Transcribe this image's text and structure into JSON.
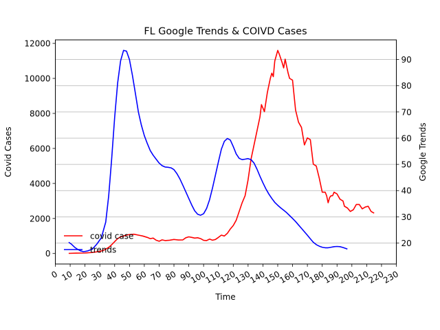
{
  "chart_data": {
    "type": "line",
    "title": "FL Google Trends & COIVD Cases",
    "xlabel": "Time",
    "ylabel_left": "Covid Cases",
    "ylabel_right": "Google Trends",
    "xlim": [
      0,
      230
    ],
    "ylim_left": [
      -600,
      12200
    ],
    "ylim_right": [
      12,
      97.5
    ],
    "xticks": [
      0,
      10,
      20,
      30,
      40,
      50,
      60,
      70,
      80,
      90,
      100,
      110,
      120,
      130,
      140,
      150,
      160,
      170,
      180,
      190,
      200,
      210,
      220,
      230
    ],
    "yticks_left": [
      0,
      2000,
      4000,
      6000,
      8000,
      10000,
      12000
    ],
    "yticks_right": [
      20,
      30,
      40,
      50,
      60,
      70,
      80,
      90
    ],
    "grid": "horizontal lines on right axis",
    "legend_position": "lower-left",
    "colors": {
      "covid": "#ff0000",
      "trends": "#0000ff"
    },
    "series": [
      {
        "name": "covid case",
        "axis": "left",
        "points": [
          [
            9,
            10
          ],
          [
            14,
            20
          ],
          [
            20,
            30
          ],
          [
            25,
            60
          ],
          [
            30,
            120
          ],
          [
            33,
            200
          ],
          [
            36,
            350
          ],
          [
            38,
            500
          ],
          [
            40,
            680
          ],
          [
            42,
            850
          ],
          [
            44,
            950
          ],
          [
            46,
            1000
          ],
          [
            48,
            1050
          ],
          [
            50,
            1080
          ],
          [
            53,
            1100
          ],
          [
            56,
            1050
          ],
          [
            59,
            1000
          ],
          [
            62,
            920
          ],
          [
            64,
            850
          ],
          [
            66,
            880
          ],
          [
            68,
            760
          ],
          [
            70,
            700
          ],
          [
            72,
            780
          ],
          [
            74,
            740
          ],
          [
            77,
            760
          ],
          [
            80,
            800
          ],
          [
            83,
            770
          ],
          [
            86,
            780
          ],
          [
            88,
            900
          ],
          [
            90,
            950
          ],
          [
            92,
            920
          ],
          [
            94,
            880
          ],
          [
            96,
            900
          ],
          [
            98,
            850
          ],
          [
            100,
            750
          ],
          [
            102,
            740
          ],
          [
            104,
            820
          ],
          [
            106,
            760
          ],
          [
            108,
            800
          ],
          [
            110,
            920
          ],
          [
            112,
            1050
          ],
          [
            114,
            1000
          ],
          [
            116,
            1150
          ],
          [
            118,
            1400
          ],
          [
            120,
            1600
          ],
          [
            122,
            1900
          ],
          [
            124,
            2400
          ],
          [
            126,
            2900
          ],
          [
            128,
            3300
          ],
          [
            130,
            4200
          ],
          [
            132,
            5400
          ],
          [
            134,
            6200
          ],
          [
            136,
            7000
          ],
          [
            138,
            7800
          ],
          [
            139,
            8500
          ],
          [
            141,
            8100
          ],
          [
            143,
            9200
          ],
          [
            145,
            10000
          ],
          [
            146,
            10300
          ],
          [
            147,
            10100
          ],
          [
            148,
            11000
          ],
          [
            150,
            11600
          ],
          [
            151,
            11400
          ],
          [
            153,
            10900
          ],
          [
            154,
            10600
          ],
          [
            155,
            11100
          ],
          [
            156,
            10700
          ],
          [
            157,
            10300
          ],
          [
            158,
            10000
          ],
          [
            160,
            9900
          ],
          [
            162,
            8200
          ],
          [
            164,
            7500
          ],
          [
            166,
            7200
          ],
          [
            168,
            6200
          ],
          [
            170,
            6600
          ],
          [
            172,
            6500
          ],
          [
            174,
            5100
          ],
          [
            176,
            5000
          ],
          [
            178,
            4300
          ],
          [
            180,
            3500
          ],
          [
            182,
            3500
          ],
          [
            183,
            3300
          ],
          [
            184,
            2900
          ],
          [
            185,
            3200
          ],
          [
            186,
            3300
          ],
          [
            187,
            3300
          ],
          [
            188,
            3500
          ],
          [
            190,
            3400
          ],
          [
            192,
            3100
          ],
          [
            194,
            3000
          ],
          [
            195,
            2700
          ],
          [
            197,
            2600
          ],
          [
            199,
            2400
          ],
          [
            201,
            2500
          ],
          [
            203,
            2800
          ],
          [
            205,
            2800
          ],
          [
            207,
            2550
          ],
          [
            209,
            2650
          ],
          [
            211,
            2700
          ],
          [
            213,
            2400
          ],
          [
            215,
            2300
          ]
        ]
      },
      {
        "name": "trends",
        "axis": "right",
        "points": [
          [
            9,
            20.3
          ],
          [
            11,
            19.5
          ],
          [
            13,
            18.4
          ],
          [
            15,
            17.6
          ],
          [
            17,
            17.0
          ],
          [
            19,
            16.7
          ],
          [
            22,
            17.0
          ],
          [
            25,
            17.7
          ],
          [
            28,
            19.6
          ],
          [
            31,
            22.0
          ],
          [
            34,
            28
          ],
          [
            36,
            38
          ],
          [
            38,
            52
          ],
          [
            40,
            68
          ],
          [
            42,
            81
          ],
          [
            44,
            89.5
          ],
          [
            46,
            93.5
          ],
          [
            48,
            93.2
          ],
          [
            50,
            90
          ],
          [
            52,
            84
          ],
          [
            54,
            77
          ],
          [
            56,
            70
          ],
          [
            58,
            65
          ],
          [
            60,
            61
          ],
          [
            62,
            58
          ],
          [
            64,
            55.3
          ],
          [
            66,
            53.5
          ],
          [
            68,
            52
          ],
          [
            70,
            50.5
          ],
          [
            72,
            49.5
          ],
          [
            74,
            49
          ],
          [
            76,
            48.9
          ],
          [
            78,
            48.7
          ],
          [
            80,
            48
          ],
          [
            82,
            46.5
          ],
          [
            84,
            44.5
          ],
          [
            86,
            42
          ],
          [
            88,
            39.5
          ],
          [
            90,
            37
          ],
          [
            92,
            34.5
          ],
          [
            94,
            32.3
          ],
          [
            96,
            31
          ],
          [
            98,
            30.6
          ],
          [
            100,
            31.2
          ],
          [
            102,
            33.2
          ],
          [
            104,
            36.5
          ],
          [
            106,
            41
          ],
          [
            108,
            46
          ],
          [
            110,
            51
          ],
          [
            112,
            55.8
          ],
          [
            114,
            58.8
          ],
          [
            116,
            59.9
          ],
          [
            118,
            59.3
          ],
          [
            120,
            56.8
          ],
          [
            122,
            54
          ],
          [
            124,
            52.3
          ],
          [
            126,
            51.8
          ],
          [
            128,
            52
          ],
          [
            130,
            52.2
          ],
          [
            132,
            51.8
          ],
          [
            134,
            50.5
          ],
          [
            136,
            48.2
          ],
          [
            138,
            45.5
          ],
          [
            140,
            43
          ],
          [
            142,
            40.7
          ],
          [
            144,
            38.7
          ],
          [
            146,
            37
          ],
          [
            148,
            35.5
          ],
          [
            150,
            34.4
          ],
          [
            152,
            33.4
          ],
          [
            154,
            32.5
          ],
          [
            156,
            31.6
          ],
          [
            158,
            30.5
          ],
          [
            160,
            29.4
          ],
          [
            162,
            28.2
          ],
          [
            164,
            26.9
          ],
          [
            166,
            25.6
          ],
          [
            168,
            24.3
          ],
          [
            170,
            23
          ],
          [
            172,
            21.6
          ],
          [
            174,
            20.3
          ],
          [
            176,
            19.4
          ],
          [
            178,
            18.8
          ],
          [
            180,
            18.4
          ],
          [
            182,
            18.2
          ],
          [
            184,
            18.2
          ],
          [
            186,
            18.4
          ],
          [
            188,
            18.6
          ],
          [
            190,
            18.7
          ],
          [
            192,
            18.6
          ],
          [
            194,
            18.3
          ],
          [
            196,
            17.9
          ],
          [
            197,
            17.7
          ]
        ]
      }
    ]
  }
}
